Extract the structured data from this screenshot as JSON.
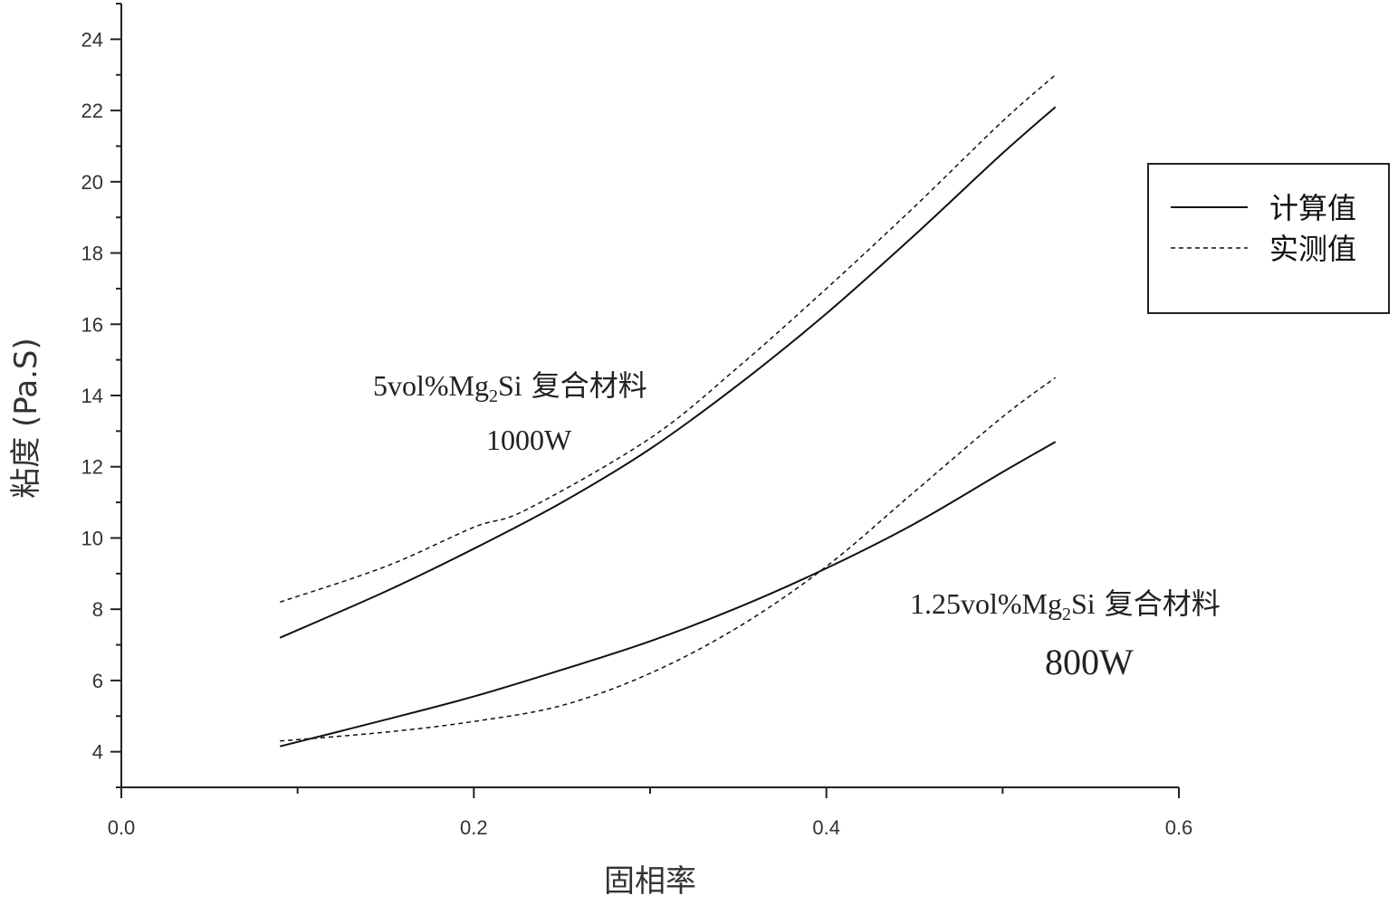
{
  "chart_data": {
    "type": "line",
    "title": "",
    "xlabel": "固相率",
    "ylabel": "粘度 (Pa.S)",
    "xlim": [
      0.0,
      0.6
    ],
    "ylim": [
      3,
      25
    ],
    "x_ticks": [
      "0.0",
      "0.2",
      "0.4",
      "0.6"
    ],
    "y_ticks": [
      "4",
      "6",
      "8",
      "10",
      "12",
      "14",
      "16",
      "18",
      "20",
      "22",
      "24"
    ],
    "grid": false,
    "legend_position": "top-right",
    "legend": [
      {
        "label": "计算值",
        "style": "solid"
      },
      {
        "label": "实测值",
        "style": "dashed"
      }
    ],
    "series": [
      {
        "group": "5vol%Mg2Si 复合材料 1000W",
        "style": "solid",
        "x": [
          0.09,
          0.15,
          0.2,
          0.25,
          0.3,
          0.35,
          0.4,
          0.45,
          0.5,
          0.53
        ],
        "y": [
          7.2,
          8.5,
          9.7,
          11.0,
          12.5,
          14.3,
          16.3,
          18.5,
          20.8,
          22.1
        ]
      },
      {
        "group": "5vol%Mg2Si 复合材料 1000W",
        "style": "dashed",
        "x": [
          0.09,
          0.15,
          0.2,
          0.23,
          0.3,
          0.35,
          0.4,
          0.45,
          0.5,
          0.53
        ],
        "y": [
          8.2,
          9.2,
          10.3,
          10.8,
          12.8,
          14.8,
          17.0,
          19.3,
          21.7,
          23.0
        ]
      },
      {
        "group": "1.25vol%Mg2Si 复合材料 800W",
        "style": "solid",
        "x": [
          0.09,
          0.15,
          0.2,
          0.25,
          0.3,
          0.35,
          0.4,
          0.45,
          0.5,
          0.53
        ],
        "y": [
          4.15,
          4.9,
          5.55,
          6.3,
          7.1,
          8.05,
          9.15,
          10.4,
          11.85,
          12.7
        ]
      },
      {
        "group": "1.25vol%Mg2Si 复合材料 800W",
        "style": "dashed",
        "x": [
          0.09,
          0.15,
          0.2,
          0.25,
          0.3,
          0.35,
          0.4,
          0.45,
          0.5,
          0.53
        ],
        "y": [
          4.3,
          4.55,
          4.85,
          5.3,
          6.2,
          7.5,
          9.2,
          11.3,
          13.4,
          14.5
        ]
      }
    ],
    "annotations": {
      "upper": {
        "prefix": "5vol%Mg",
        "sub": "2",
        "suffix": "Si",
        "cjk": "复合材料",
        "power": "1000W"
      },
      "lower": {
        "prefix": "1.25vol%Mg",
        "sub": "2",
        "suffix": "Si",
        "cjk": "复合材料",
        "power": "800W"
      }
    }
  }
}
